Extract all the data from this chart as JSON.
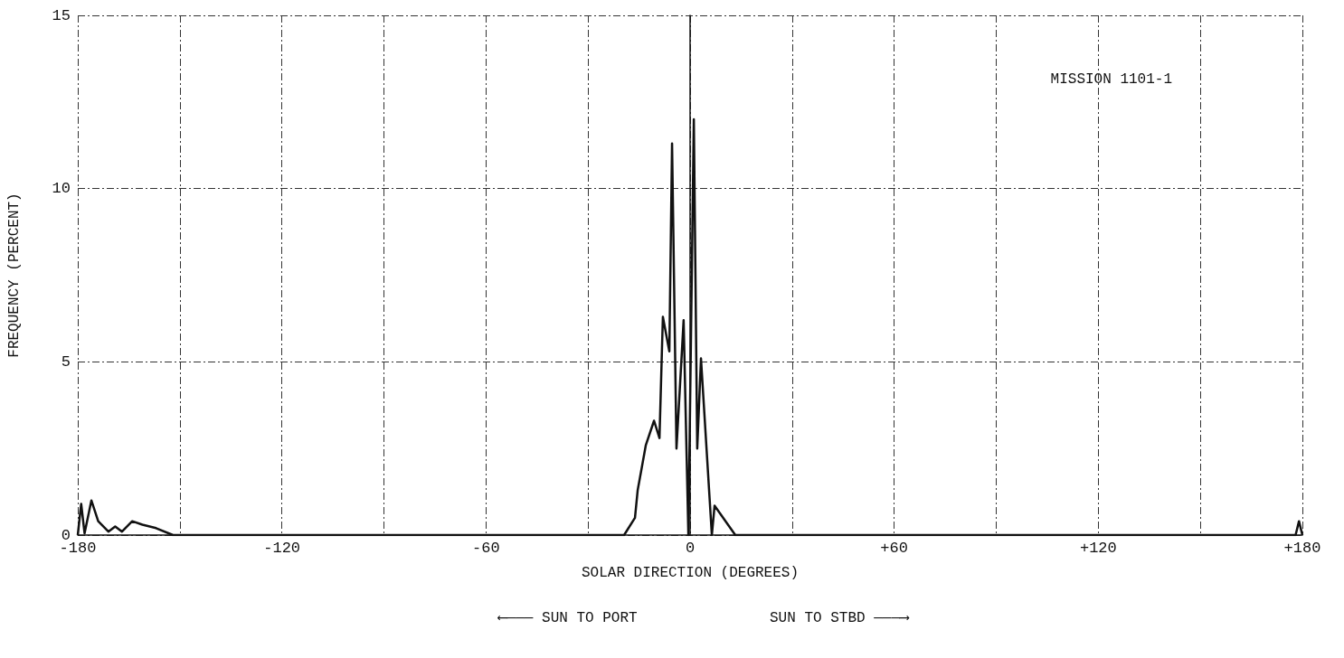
{
  "chart_data": {
    "type": "line",
    "xlabel": "SOLAR DIRECTION (DEGREES)",
    "ylabel": "FREQUENCY (PERCENT)",
    "annotations": [
      "MISSION 1101-1",
      "⟵——— SUN TO PORT",
      "SUN TO STBD ———⟶"
    ],
    "xlim": [
      -180,
      180
    ],
    "xticks": [
      {
        "value": -180,
        "label": "-180"
      },
      {
        "value": -150,
        "label": null
      },
      {
        "value": -120,
        "label": "-120"
      },
      {
        "value": -90,
        "label": null
      },
      {
        "value": -60,
        "label": "-60"
      },
      {
        "value": -30,
        "label": null
      },
      {
        "value": 0,
        "label": "0"
      },
      {
        "value": 30,
        "label": null
      },
      {
        "value": 60,
        "label": "+60"
      },
      {
        "value": 90,
        "label": null
      },
      {
        "value": 120,
        "label": "+120"
      },
      {
        "value": 150,
        "label": null
      },
      {
        "value": 180,
        "label": "+180"
      }
    ],
    "ylim": [
      0,
      15
    ],
    "yticks": [
      0,
      5,
      10,
      15
    ],
    "grid": true,
    "marker": "none",
    "line_style": "solid",
    "series": [
      {
        "color": "#111111",
        "x": [
          -180,
          -179,
          -178,
          -176,
          -174,
          -171,
          -169,
          -167,
          -164,
          -161,
          -157,
          -152,
          -19.4,
          -16.2,
          -15.4,
          -13,
          -10.6,
          -9,
          -8,
          -6.1,
          -5.3,
          -4,
          -1.9,
          -0.5,
          1.1,
          2.1,
          3.2,
          6.4,
          7.2,
          13.3,
          178,
          179,
          180
        ],
        "values": [
          0,
          0.9,
          0.05,
          1.0,
          0.4,
          0.1,
          0.25,
          0.1,
          0.4,
          0.3,
          0.2,
          0,
          0,
          0.5,
          1.3,
          2.6,
          3.3,
          2.8,
          6.3,
          5.3,
          11.3,
          2.5,
          6.2,
          0,
          12.0,
          2.5,
          5.1,
          0,
          0.85,
          0,
          0,
          0.4,
          0
        ]
      }
    ]
  }
}
